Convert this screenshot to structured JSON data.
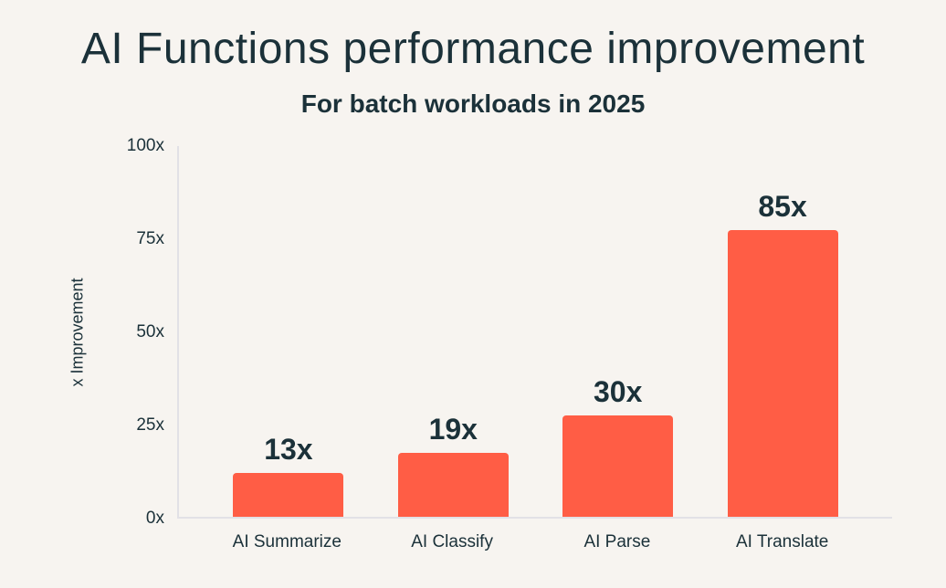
{
  "page": {
    "background_color": "#f7f4f0",
    "text_color": "#1b3139"
  },
  "chart_data": {
    "type": "bar",
    "title": "AI Functions performance improvement",
    "subtitle": "For batch workloads in 2025",
    "categories": [
      "AI Summarize",
      "AI Classify",
      "AI Parse",
      "AI Translate"
    ],
    "values": [
      13,
      19,
      30,
      85
    ],
    "value_labels": [
      "13x",
      "19x",
      "30x",
      "85x"
    ],
    "xlabel": "",
    "ylabel": "x Improvement",
    "ylim": [
      0,
      100
    ],
    "yticks": [
      "0x",
      "25x",
      "50x",
      "75x",
      "100x"
    ],
    "grid": false,
    "legend": false,
    "bar_color": "#ff5d45",
    "axis_line_color": "#e2e1e6",
    "bar_render_scale_max": 110
  }
}
